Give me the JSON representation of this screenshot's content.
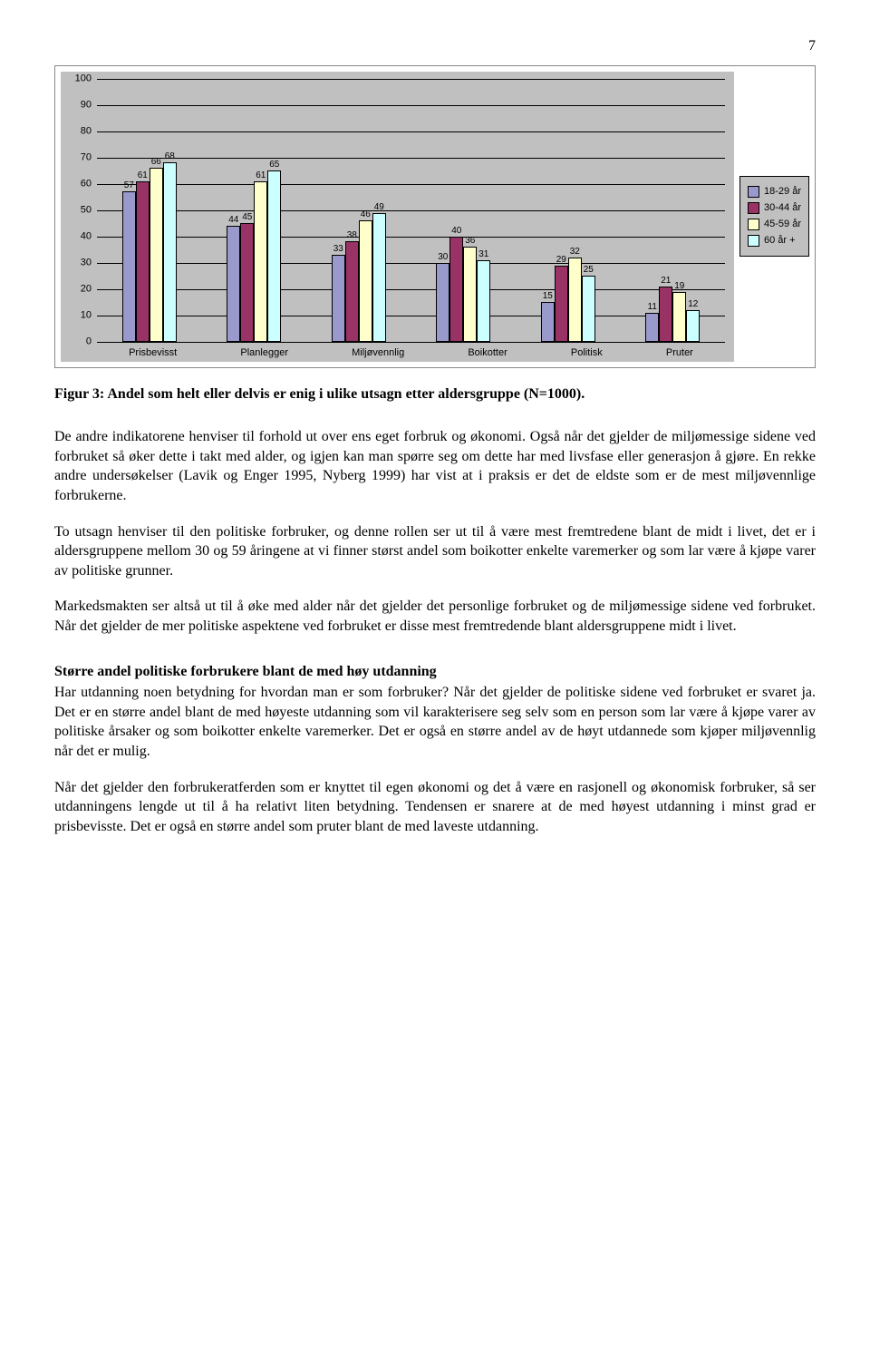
{
  "page_number": "7",
  "chart": {
    "type": "bar",
    "categories": [
      "Prisbevisst",
      "Planlegger",
      "Miljøvennlig",
      "Boikotter",
      "Politisk",
      "Pruter"
    ],
    "series": [
      {
        "label": "18-29 år",
        "color": "#9999cc",
        "values": [
          57,
          44,
          33,
          30,
          15,
          11
        ]
      },
      {
        "label": "30-44 år",
        "color": "#993366",
        "values": [
          61,
          45,
          38,
          40,
          29,
          21
        ]
      },
      {
        "label": "45-59 år",
        "color": "#ffffcc",
        "values": [
          66,
          61,
          46,
          36,
          32,
          19
        ]
      },
      {
        "label": "60 år +",
        "color": "#ccffff",
        "values": [
          68,
          65,
          49,
          31,
          25,
          12
        ]
      }
    ],
    "ylim": [
      0,
      100
    ],
    "ytick_step": 10,
    "background_color": "#c0c0c0",
    "grid_color": "#000000",
    "label_fontsize": 11,
    "data_fontsize": 10
  },
  "caption": "Figur 3: Andel som helt eller delvis er enig i ulike utsagn etter aldersgruppe (N=1000).",
  "body": {
    "p1": "De andre indikatorene henviser til forhold ut over ens eget forbruk og økonomi. Også når det gjelder de miljømessige sidene ved forbruket så øker dette i takt med alder, og igjen kan man spørre seg om dette har med livsfase eller generasjon å gjøre. En rekke andre undersøkelser (Lavik og Enger 1995, Nyberg 1999) har vist at i praksis er det de eldste som er de mest miljøvennlige forbrukerne.",
    "p2": "To utsagn henviser til den politiske forbruker, og denne rollen ser ut til å være mest fremtredene blant de midt i livet, det er i aldersgruppene mellom 30 og 59 åringene at vi finner størst andel som boikotter enkelte varemerker og som lar være å kjøpe varer av politiske grunner.",
    "p3": "Markedsmakten ser altså ut til å øke med alder når det gjelder det personlige forbruket og de miljømessige sidene ved forbruket. Når det gjelder de mer politiske aspektene ved forbruket er disse mest fremtredende blant aldersgruppene midt i livet.",
    "subhead": "Større andel politiske forbrukere blant de med høy utdanning",
    "p4": "Har utdanning noen betydning for hvordan man er som forbruker? Når det gjelder de politiske sidene ved forbruket er svaret ja. Det er en større andel blant de med høyeste utdanning som vil karakterisere seg selv som en person som lar være å kjøpe varer av politiske årsaker og som boikotter enkelte varemerker. Det er også en større andel av de høyt utdannede som kjøper miljøvennlig når det er mulig.",
    "p5": "Når det gjelder den forbrukeratferden som er knyttet til egen økonomi og det å være en rasjonell og økonomisk forbruker, så ser utdanningens lengde ut til å ha relativt liten betydning. Tendensen er snarere at de med høyest utdanning i minst grad er prisbevisste. Det er også en større andel som pruter blant de med laveste utdanning."
  }
}
